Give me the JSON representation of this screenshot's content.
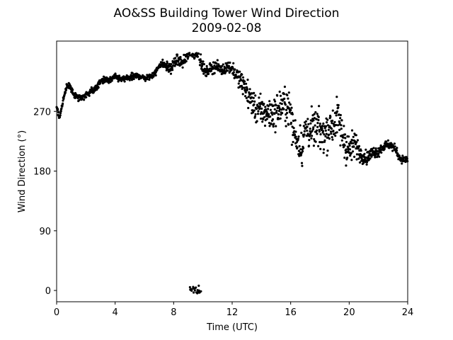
{
  "chart_data": {
    "type": "scatter",
    "title": "AO&SS Building Tower Wind Direction",
    "subtitle": "2009-02-08",
    "xlabel": "Time (UTC)",
    "ylabel": "Wind Direction (°)",
    "xlim": [
      0,
      24
    ],
    "ylim": [
      -17,
      376
    ],
    "xticks": [
      0,
      4,
      8,
      12,
      16,
      20,
      24
    ],
    "xtick_labels": [
      "0",
      "4",
      "8",
      "12",
      "16",
      "20",
      "24"
    ],
    "yticks": [
      0,
      90,
      180,
      270
    ],
    "ytick_labels": [
      "0",
      "90",
      "180",
      "270"
    ],
    "grid": false,
    "legend": "none",
    "marker_color": "#000000",
    "trend_points": [
      [
        0.0,
        275
      ],
      [
        0.2,
        262
      ],
      [
        0.4,
        282
      ],
      [
        0.6,
        300
      ],
      [
        0.7,
        310
      ],
      [
        0.9,
        307
      ],
      [
        1.2,
        295
      ],
      [
        1.5,
        290
      ],
      [
        1.8,
        292
      ],
      [
        2.0,
        294
      ],
      [
        2.3,
        300
      ],
      [
        2.6,
        302
      ],
      [
        2.9,
        312
      ],
      [
        3.2,
        318
      ],
      [
        3.6,
        316
      ],
      [
        4.0,
        322
      ],
      [
        4.4,
        318
      ],
      [
        4.8,
        320
      ],
      [
        5.2,
        322
      ],
      [
        5.6,
        324
      ],
      [
        6.0,
        320
      ],
      [
        6.4,
        322
      ],
      [
        6.8,
        330
      ],
      [
        7.1,
        343
      ],
      [
        7.5,
        338
      ],
      [
        7.8,
        334
      ],
      [
        8.2,
        348
      ],
      [
        8.6,
        343
      ],
      [
        8.9,
        352
      ],
      [
        9.1,
        358
      ],
      [
        9.4,
        356
      ],
      [
        9.7,
        358
      ],
      [
        9.9,
        340
      ],
      [
        10.2,
        328
      ],
      [
        10.5,
        335
      ],
      [
        10.9,
        338
      ],
      [
        11.3,
        332
      ],
      [
        11.7,
        338
      ],
      [
        12.0,
        335
      ],
      [
        12.4,
        320
      ],
      [
        12.8,
        310
      ],
      [
        13.2,
        290
      ],
      [
        13.6,
        275
      ],
      [
        14.0,
        270
      ],
      [
        14.4,
        268
      ],
      [
        14.8,
        266
      ],
      [
        15.2,
        275
      ],
      [
        15.6,
        282
      ],
      [
        15.9,
        275
      ],
      [
        16.2,
        240
      ],
      [
        16.5,
        225
      ],
      [
        16.8,
        215
      ],
      [
        17.0,
        245
      ],
      [
        17.4,
        240
      ],
      [
        17.8,
        245
      ],
      [
        18.2,
        235
      ],
      [
        18.6,
        245
      ],
      [
        18.9,
        250
      ],
      [
        19.2,
        262
      ],
      [
        19.6,
        230
      ],
      [
        20.0,
        210
      ],
      [
        20.4,
        222
      ],
      [
        20.8,
        205
      ],
      [
        21.2,
        200
      ],
      [
        21.6,
        208
      ],
      [
        22.0,
        210
      ],
      [
        22.4,
        218
      ],
      [
        22.8,
        220
      ],
      [
        23.2,
        212
      ],
      [
        23.5,
        198
      ],
      [
        24.0,
        197
      ]
    ],
    "scatter_spread": [
      [
        0,
        4
      ],
      [
        6,
        4
      ],
      [
        8,
        6
      ],
      [
        12,
        7
      ],
      [
        12.5,
        12
      ],
      [
        13,
        16
      ],
      [
        16,
        22
      ],
      [
        20,
        24
      ],
      [
        20.5,
        14
      ],
      [
        21,
        8
      ],
      [
        24,
        4
      ]
    ],
    "outlier_cluster": {
      "x_range": [
        9.1,
        9.9
      ],
      "y_center": 2,
      "y_spread": 3
    }
  }
}
